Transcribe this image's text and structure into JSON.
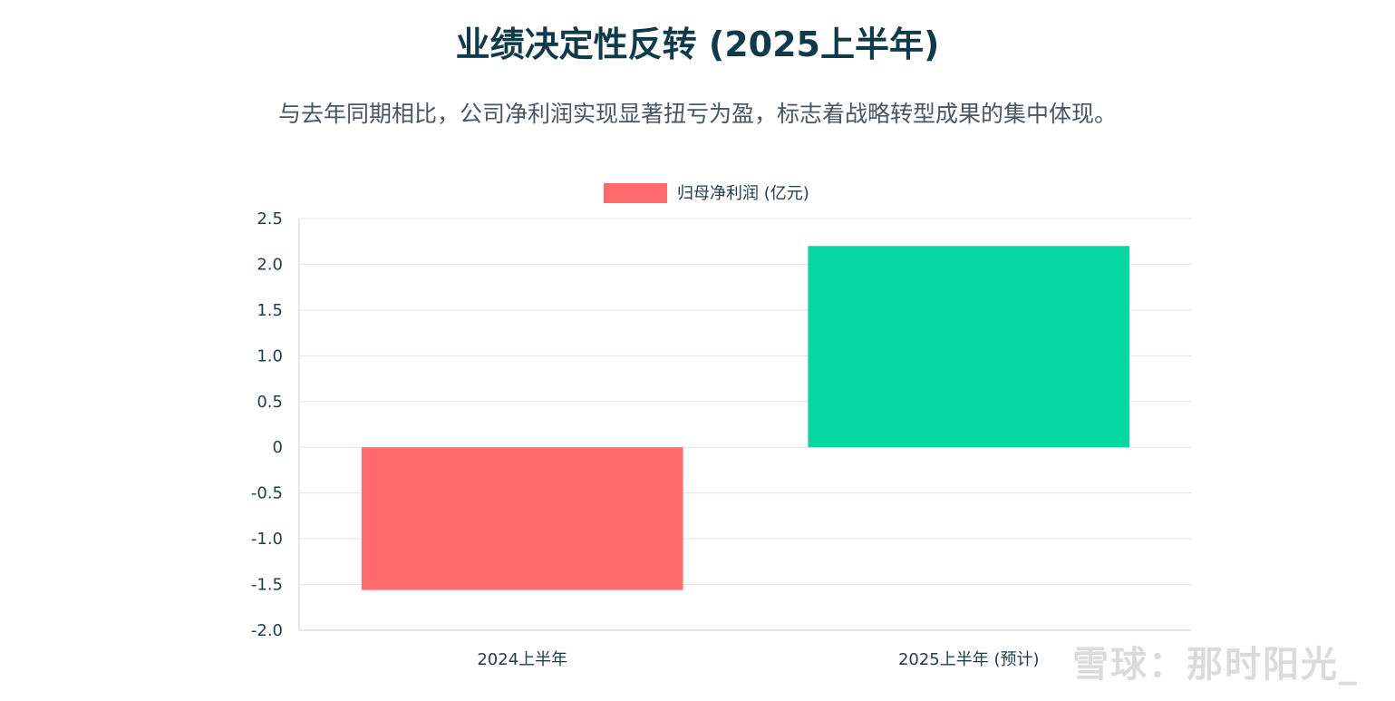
{
  "header": {
    "title": "业绩决定性反转 (2025上半年)",
    "subtitle": "与去年同期相比，公司净利润实现显著扭亏为盈，标志着战略转型成果的集中体现。"
  },
  "watermark": "雪球：那时阳光_",
  "chart_data": {
    "type": "bar",
    "categories": [
      "2024上半年",
      "2025上半年 (预计)"
    ],
    "series": [
      {
        "name": "归母净利润 (亿元)",
        "values": [
          -1.56,
          2.2
        ]
      }
    ],
    "bar_colors": [
      "#ff6b6b",
      "#06d6a0"
    ],
    "legend_color": "#ff6b6b",
    "ylim": [
      -2.0,
      2.5
    ],
    "yticks": [
      "2.5",
      "2.0",
      "1.5",
      "1.0",
      "0.5",
      "0",
      "-0.5",
      "-1.0",
      "-1.5",
      "-2.0"
    ],
    "ytick_values": [
      2.5,
      2.0,
      1.5,
      1.0,
      0.5,
      0,
      -0.5,
      -1.0,
      -1.5,
      -2.0
    ],
    "grid": true,
    "legend_position": "top-center",
    "title": "",
    "xlabel": "",
    "ylabel": ""
  }
}
